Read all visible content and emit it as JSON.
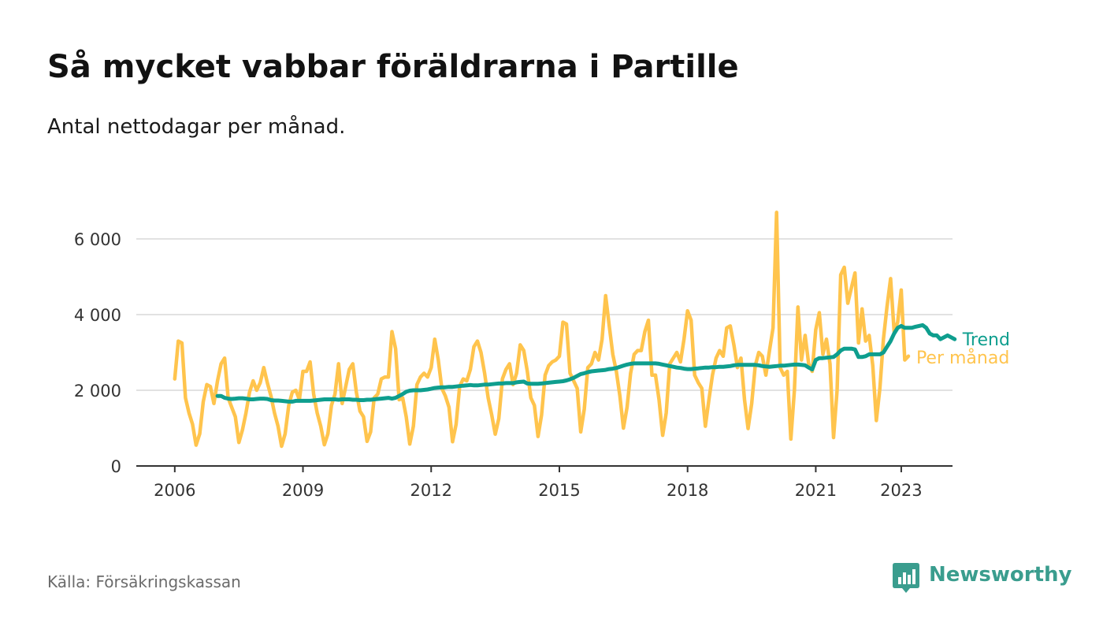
{
  "title": "Så mycket vabbar föräldrarna i Partille",
  "subtitle": "Antal nettodagar per månad.",
  "source": "Källa: Försäkringskassan",
  "brand": "Newsworthy",
  "colors": {
    "monthly": "#ffc44d",
    "trend": "#0e9e8e",
    "grid": "#d9d9d9",
    "axis": "#333333"
  },
  "icons": {
    "brand": "newsworthy-bar-chart-icon"
  },
  "chart_data": {
    "type": "line",
    "title": "Så mycket vabbar föräldrarna i Partille",
    "subtitle": "Antal nettodagar per månad.",
    "xlabel": "",
    "ylabel": "",
    "x_start": "2006-01",
    "x_range": [
      2005.1,
      2024.2
    ],
    "ylim": [
      0,
      7000
    ],
    "y_ticks": [
      0,
      2000,
      4000,
      6000
    ],
    "y_tick_labels": [
      "0",
      "2 000",
      "4 000",
      "6 000"
    ],
    "x_ticks": [
      2006,
      2009,
      2012,
      2015,
      2018,
      2021,
      2023
    ],
    "x_tick_labels": [
      "2006",
      "2009",
      "2012",
      "2015",
      "2018",
      "2021",
      "2023"
    ],
    "grid": "horizontal",
    "legend": "end-of-line labels, right",
    "series": [
      {
        "name": "Per månad",
        "color": "#ffc44d",
        "values": [
          2300,
          3300,
          3250,
          1800,
          1400,
          1100,
          550,
          850,
          1700,
          2150,
          2100,
          1650,
          2250,
          2700,
          2850,
          1800,
          1550,
          1300,
          620,
          950,
          1400,
          1950,
          2250,
          2000,
          2200,
          2600,
          2200,
          1850,
          1400,
          1050,
          520,
          850,
          1600,
          1950,
          2000,
          1750,
          2500,
          2500,
          2750,
          1900,
          1400,
          1050,
          560,
          850,
          1600,
          1900,
          2700,
          1650,
          2100,
          2550,
          2700,
          1950,
          1450,
          1300,
          650,
          900,
          1800,
          1900,
          2300,
          2350,
          2350,
          3550,
          3100,
          1750,
          1800,
          1300,
          580,
          1050,
          2150,
          2350,
          2450,
          2350,
          2600,
          3350,
          2800,
          2050,
          1850,
          1550,
          640,
          1100,
          2100,
          2300,
          2250,
          2550,
          3150,
          3300,
          3000,
          2450,
          1800,
          1350,
          840,
          1250,
          2300,
          2550,
          2700,
          2150,
          2450,
          3200,
          3050,
          2500,
          1800,
          1600,
          780,
          1350,
          2400,
          2650,
          2750,
          2800,
          2900,
          3800,
          3750,
          2450,
          2250,
          2050,
          900,
          1500,
          2600,
          2700,
          3000,
          2800,
          3350,
          4500,
          3700,
          2950,
          2500,
          1850,
          1000,
          1550,
          2450,
          2950,
          3050,
          3050,
          3550,
          3850,
          2400,
          2400,
          1750,
          810,
          1400,
          2700,
          2850,
          3000,
          2750,
          3350,
          4100,
          3850,
          2400,
          2200,
          2050,
          1050,
          1750,
          2400,
          2850,
          3050,
          2900,
          3650,
          3700,
          3200,
          2600,
          2850,
          1750,
          990,
          1650,
          2650,
          3000,
          2900,
          2400,
          3050,
          3650,
          6700,
          2600,
          2400,
          2500,
          710,
          2000,
          4200,
          2800,
          3450,
          2700,
          2500,
          3600,
          4050,
          2950,
          3350,
          2700,
          750,
          2000,
          5050,
          5250,
          4300,
          4700,
          5100,
          3250,
          4150,
          3300,
          3450,
          2650,
          1200,
          2050,
          3350,
          4200,
          4950,
          3550,
          3800,
          4650,
          2800,
          2900
        ]
      },
      {
        "name": "Trend",
        "color": "#0e9e8e",
        "start": "2007-01",
        "values": [
          1850,
          1850,
          1800,
          1780,
          1770,
          1780,
          1790,
          1790,
          1780,
          1760,
          1760,
          1770,
          1780,
          1780,
          1770,
          1740,
          1730,
          1730,
          1720,
          1710,
          1700,
          1700,
          1720,
          1720,
          1720,
          1720,
          1720,
          1730,
          1740,
          1750,
          1760,
          1760,
          1760,
          1760,
          1750,
          1760,
          1760,
          1760,
          1750,
          1750,
          1740,
          1740,
          1750,
          1750,
          1760,
          1770,
          1780,
          1790,
          1800,
          1780,
          1800,
          1850,
          1900,
          1960,
          1990,
          2000,
          2000,
          2000,
          2010,
          2020,
          2040,
          2060,
          2070,
          2080,
          2080,
          2090,
          2090,
          2100,
          2110,
          2120,
          2130,
          2140,
          2130,
          2130,
          2140,
          2150,
          2150,
          2160,
          2170,
          2180,
          2180,
          2190,
          2190,
          2190,
          2210,
          2220,
          2230,
          2180,
          2170,
          2170,
          2170,
          2180,
          2190,
          2200,
          2210,
          2220,
          2230,
          2240,
          2260,
          2290,
          2330,
          2380,
          2430,
          2450,
          2480,
          2500,
          2510,
          2520,
          2530,
          2540,
          2560,
          2570,
          2590,
          2620,
          2650,
          2680,
          2700,
          2710,
          2710,
          2710,
          2710,
          2710,
          2710,
          2710,
          2700,
          2680,
          2660,
          2640,
          2620,
          2600,
          2590,
          2570,
          2560,
          2560,
          2570,
          2580,
          2590,
          2600,
          2600,
          2610,
          2610,
          2620,
          2620,
          2630,
          2640,
          2660,
          2670,
          2670,
          2670,
          2670,
          2670,
          2670,
          2660,
          2640,
          2630,
          2620,
          2630,
          2640,
          2650,
          2650,
          2660,
          2670,
          2680,
          2680,
          2670,
          2660,
          2600,
          2550,
          2800,
          2850,
          2850,
          2860,
          2870,
          2880,
          2950,
          3050,
          3100,
          3100,
          3100,
          3080,
          2880,
          2880,
          2900,
          2950,
          2950,
          2950,
          2950,
          3000,
          3150,
          3300,
          3500,
          3650,
          3700,
          3650,
          3650,
          3650,
          3680,
          3700,
          3720,
          3650,
          3500,
          3450,
          3450,
          3350,
          3400,
          3450,
          3400,
          3350
        ]
      }
    ]
  }
}
